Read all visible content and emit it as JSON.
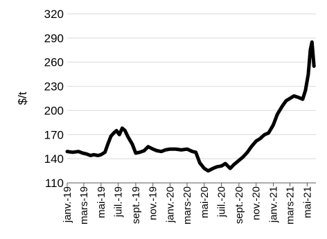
{
  "chart_data": {
    "type": "line",
    "title": "",
    "xlabel": "",
    "ylabel": "$/t",
    "ylim": [
      110,
      320
    ],
    "yticks": [
      110,
      140,
      170,
      200,
      230,
      260,
      290,
      320
    ],
    "grid": true,
    "legend": "none",
    "colors": {
      "line": "#000000",
      "grid": "#d9d9d9",
      "axis": "#595959"
    },
    "xtick_labels": [
      "janv.-19",
      "mars-19",
      "mai-19",
      "juil.-19",
      "sept.-19",
      "nov.-19",
      "janv.-20",
      "mars-20",
      "mai-20",
      "juil.-20",
      "sept.-20",
      "nov.-20",
      "janv.-21",
      "mars-21",
      "mai-21"
    ],
    "x_dates": [
      "2019-01-01",
      "2019-03-01",
      "2019-05-01",
      "2019-07-01",
      "2019-09-01",
      "2019-11-01",
      "2020-01-01",
      "2020-03-01",
      "2020-05-01",
      "2020-07-01",
      "2020-09-01",
      "2020-11-01",
      "2021-01-01",
      "2021-03-01",
      "2021-05-01"
    ],
    "series": [
      {
        "x": [
          "2019-01-01",
          "2019-01-20",
          "2019-02-10",
          "2019-02-25",
          "2019-03-10",
          "2019-03-25",
          "2019-04-05",
          "2019-04-20",
          "2019-05-01",
          "2019-05-15",
          "2019-05-25",
          "2019-06-05",
          "2019-06-15",
          "2019-06-25",
          "2019-07-05",
          "2019-07-15",
          "2019-07-25",
          "2019-08-05",
          "2019-08-20",
          "2019-09-01",
          "2019-09-15",
          "2019-10-01",
          "2019-10-15",
          "2019-11-01",
          "2019-11-15",
          "2019-12-01",
          "2019-12-15",
          "2020-01-01",
          "2020-01-20",
          "2020-02-10",
          "2020-03-01",
          "2020-03-20",
          "2020-04-01",
          "2020-04-15",
          "2020-05-01",
          "2020-05-15",
          "2020-06-01",
          "2020-06-15",
          "2020-07-01",
          "2020-07-15",
          "2020-08-01",
          "2020-08-15",
          "2020-09-01",
          "2020-09-15",
          "2020-10-01",
          "2020-10-15",
          "2020-11-01",
          "2020-11-15",
          "2020-12-01",
          "2020-12-15",
          "2021-01-01",
          "2021-01-15",
          "2021-02-01",
          "2021-02-15",
          "2021-03-01",
          "2021-03-15",
          "2021-04-01",
          "2021-04-15",
          "2021-04-25",
          "2021-05-05",
          "2021-05-12",
          "2021-05-18",
          "2021-05-25"
        ],
        "values": [
          149,
          148,
          149,
          147,
          146,
          144,
          145,
          144,
          145,
          148,
          158,
          168,
          172,
          175,
          170,
          178,
          175,
          167,
          158,
          147,
          148,
          150,
          155,
          152,
          150,
          149,
          151,
          152,
          152,
          151,
          152,
          149,
          148,
          135,
          128,
          125,
          128,
          130,
          131,
          134,
          128,
          133,
          138,
          142,
          148,
          155,
          162,
          165,
          170,
          172,
          182,
          195,
          205,
          212,
          215,
          218,
          216,
          214,
          225,
          245,
          275,
          285,
          255
        ]
      }
    ]
  }
}
